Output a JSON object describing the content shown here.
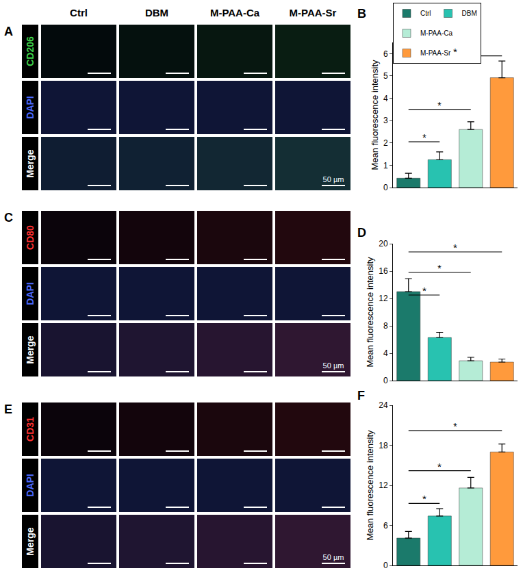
{
  "figure": {
    "columns": [
      "Ctrl",
      "DBM",
      "M-PAA-Ca",
      "M-PAA-Sr"
    ],
    "scale_bar": "50 µm",
    "panels": [
      {
        "letter": "A",
        "rows": [
          {
            "label": "CD206",
            "color": "#3fd14a"
          },
          {
            "label": "DAPI",
            "color": "#4d6bff"
          },
          {
            "label": "Merge",
            "color": "#ffffff"
          }
        ]
      },
      {
        "letter": "C",
        "rows": [
          {
            "label": "CD80",
            "color": "#ff3030"
          },
          {
            "label": "DAPI",
            "color": "#4d6bff"
          },
          {
            "label": "Merge",
            "color": "#ffffff"
          }
        ]
      },
      {
        "letter": "E",
        "rows": [
          {
            "label": "CD31",
            "color": "#ff3030"
          },
          {
            "label": "DAPI",
            "color": "#4d6bff"
          },
          {
            "label": "Merge",
            "color": "#ffffff"
          }
        ]
      }
    ]
  },
  "chart_data": [
    {
      "type": "bar",
      "panel": "B",
      "categories": [
        "Ctrl",
        "DBM",
        "M-PAA-Ca",
        "M-PAA-Sr"
      ],
      "colors": [
        "#1b7a6b",
        "#28c2b0",
        "#b5ecd6",
        "#ff9a3c"
      ],
      "values": [
        0.42,
        1.25,
        2.6,
        4.92
      ],
      "errors": [
        0.22,
        0.35,
        0.35,
        0.75
      ],
      "ylabel": "Mean fluorescence intensity",
      "ylim": [
        0,
        6.5
      ],
      "yticks": [
        0,
        1,
        2,
        3,
        4,
        5,
        6
      ],
      "tick_labels": "y",
      "legend": "top",
      "annotations": [
        {
          "from": "Ctrl",
          "to": "DBM",
          "y": 2.05,
          "text": "*"
        },
        {
          "from": "Ctrl",
          "to": "M-PAA-Ca",
          "y": 3.5,
          "text": "*"
        },
        {
          "from": "Ctrl",
          "to": "M-PAA-Sr",
          "y": 5.9,
          "text": "*"
        }
      ]
    },
    {
      "type": "bar",
      "panel": "D",
      "categories": [
        "Ctrl",
        "DBM",
        "M-PAA-Ca",
        "M-PAA-Sr"
      ],
      "colors": [
        "#1b7a6b",
        "#28c2b0",
        "#b5ecd6",
        "#ff9a3c"
      ],
      "values": [
        13,
        6.3,
        2.9,
        2.7
      ],
      "errors": [
        1.9,
        0.75,
        0.5,
        0.45
      ],
      "ylabel": "Mean fluorescence intensity",
      "ylim": [
        0,
        20
      ],
      "yticks": [
        0,
        4,
        8,
        12,
        16,
        20
      ],
      "tick_labels": "y",
      "annotations": [
        {
          "from": "Ctrl",
          "to": "DBM",
          "y": 12.5,
          "text": "*"
        },
        {
          "from": "Ctrl",
          "to": "M-PAA-Ca",
          "y": 15.8,
          "text": "*"
        },
        {
          "from": "Ctrl",
          "to": "M-PAA-Sr",
          "y": 18.8,
          "text": "*"
        }
      ]
    },
    {
      "type": "bar",
      "panel": "F",
      "categories": [
        "Ctrl",
        "DBM",
        "M-PAA-Ca",
        "M-PAA-Sr"
      ],
      "colors": [
        "#1b7a6b",
        "#28c2b0",
        "#b5ecd6",
        "#ff9a3c"
      ],
      "values": [
        4.1,
        7.4,
        11.6,
        17.0
      ],
      "errors": [
        1.0,
        1.1,
        1.6,
        1.2
      ],
      "ylabel": "Mean fluorescence intensity",
      "ylim": [
        0,
        24
      ],
      "yticks": [
        0,
        6,
        12,
        18,
        24
      ],
      "tick_labels": "y",
      "annotations": [
        {
          "from": "Ctrl",
          "to": "DBM",
          "y": 9.3,
          "text": "*"
        },
        {
          "from": "Ctrl",
          "to": "M-PAA-Ca",
          "y": 14.2,
          "text": "*"
        },
        {
          "from": "Ctrl",
          "to": "M-PAA-Sr",
          "y": 20.2,
          "text": "*"
        }
      ]
    }
  ]
}
